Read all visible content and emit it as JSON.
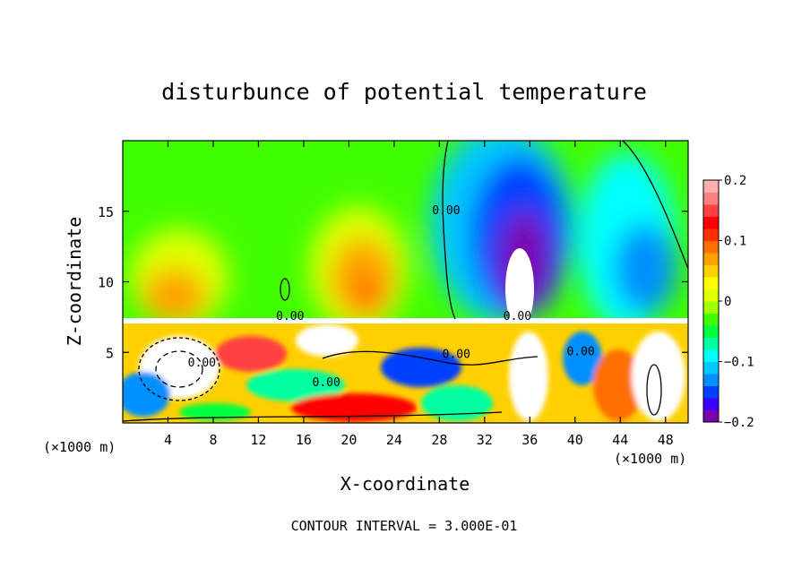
{
  "chart_data": {
    "type": "heatmap",
    "title": "disturbunce of potential temperature",
    "xlabel": "X-coordinate",
    "ylabel": "Z-coordinate",
    "x_unit_label": "(×1000 m)",
    "z_unit_label": "(×1000 m)",
    "footer": "CONTOUR INTERVAL = 3.000E-01",
    "xlim": [
      0,
      50
    ],
    "zlim": [
      0,
      20
    ],
    "x_ticks": [
      4,
      8,
      12,
      16,
      20,
      24,
      28,
      32,
      36,
      40,
      44,
      48
    ],
    "z_ticks": [
      5,
      10,
      15
    ],
    "colorbar": {
      "range": [
        -0.2,
        0.2
      ],
      "tick_values": [
        0.2,
        0.1,
        0,
        -0.1,
        -0.2
      ],
      "tick_labels": [
        "0.2",
        "0.1",
        "0",
        "−0.1",
        "−0.2"
      ],
      "colors": [
        "#7b00b0",
        "#3c00ff",
        "#0040ff",
        "#0090ff",
        "#00c8ff",
        "#00ffff",
        "#00ffa0",
        "#00ff40",
        "#40ff00",
        "#a0ff00",
        "#e0ff00",
        "#ffff00",
        "#ffd000",
        "#ffa000",
        "#ff7000",
        "#ff3000",
        "#ff0000",
        "#ff4040",
        "#ff8080",
        "#ffb0b0"
      ]
    },
    "contour_labels": [
      {
        "text": "0.00",
        "x": 28.6,
        "z": 14.8
      },
      {
        "text": "0.00",
        "x": 29.5,
        "z": 4.6
      },
      {
        "text": "0.00",
        "x": 14.8,
        "z": 7.3
      },
      {
        "text": "0.00",
        "x": 34.9,
        "z": 7.3
      },
      {
        "text": "0.00",
        "x": 7.0,
        "z": 4.0
      },
      {
        "text": "0.00",
        "x": 18.0,
        "z": 2.6
      },
      {
        "text": "0.00",
        "x": 40.5,
        "z": 4.8
      }
    ],
    "upper_layer_features": [
      {
        "kind": "warm",
        "x": 5.5,
        "z": 11.0,
        "value": 0.1
      },
      {
        "kind": "warm",
        "x": 22.5,
        "z": 11.5,
        "value": 0.12
      },
      {
        "kind": "cold",
        "x": 34.5,
        "z": 13.0,
        "value": -0.2
      },
      {
        "kind": "cold",
        "x": 45.0,
        "z": 10.0,
        "value": -0.12
      }
    ]
  }
}
